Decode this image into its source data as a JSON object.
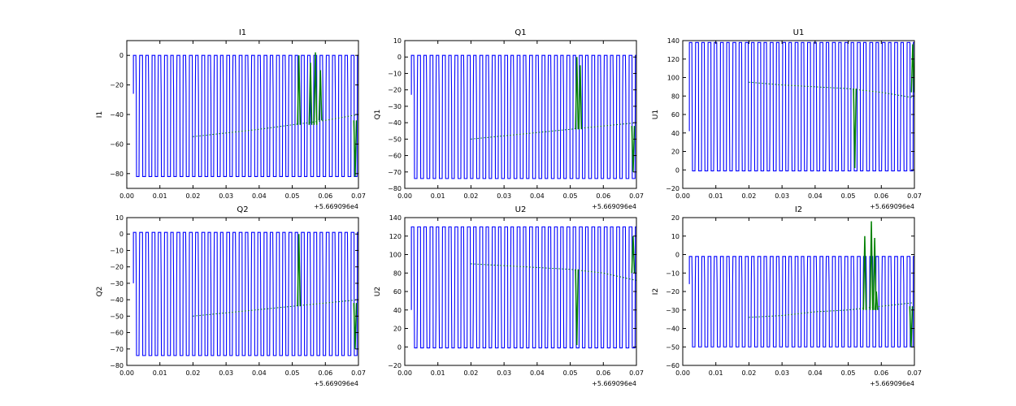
{
  "chart_data": [
    {
      "type": "line",
      "title": "I1",
      "xlabel": "",
      "ylabel": "I1",
      "xlim": [
        0,
        0.07
      ],
      "ylim": [
        -90,
        10
      ],
      "xticks": [
        "0.00",
        "0.01",
        "0.02",
        "0.03",
        "0.04",
        "0.05",
        "0.06",
        "0.07"
      ],
      "yticks": [
        {
          "v": 0,
          "label": "0"
        },
        {
          "v": -20,
          "label": "−20"
        },
        {
          "v": -40,
          "label": "−40"
        },
        {
          "v": -60,
          "label": "−60"
        },
        {
          "v": -80,
          "label": "−80"
        }
      ],
      "x_offset": "+5.669096e4",
      "series": [
        {
          "color": "#0000ff",
          "style": "square",
          "x_start": 0.002,
          "x_end": 0.07,
          "period": 0.00188,
          "high": 0,
          "low": -82,
          "mid": -26
        },
        {
          "color": "#008000",
          "style": "trend",
          "x": [
            0.02,
            0.04,
            0.05,
            0.06,
            0.07
          ],
          "y": [
            -55,
            -50,
            -47,
            -44,
            -40
          ],
          "spikes": [
            {
              "x": 0.052,
              "y": 0
            },
            {
              "x": 0.0555,
              "y": -5
            },
            {
              "x": 0.057,
              "y": 2
            },
            {
              "x": 0.0585,
              "y": -10
            },
            {
              "x": 0.069,
              "y": -82
            }
          ]
        }
      ]
    },
    {
      "type": "line",
      "title": "Q1",
      "xlabel": "",
      "ylabel": "Q1",
      "xlim": [
        0,
        0.07
      ],
      "ylim": [
        -80,
        10
      ],
      "xticks": [
        "0.00",
        "0.01",
        "0.02",
        "0.03",
        "0.04",
        "0.05",
        "0.06",
        "0.07"
      ],
      "yticks": [
        {
          "v": 10,
          "label": "10"
        },
        {
          "v": 0,
          "label": "0"
        },
        {
          "v": -10,
          "label": "−10"
        },
        {
          "v": -20,
          "label": "−20"
        },
        {
          "v": -30,
          "label": "−30"
        },
        {
          "v": -40,
          "label": "−40"
        },
        {
          "v": -50,
          "label": "−50"
        },
        {
          "v": -60,
          "label": "−60"
        },
        {
          "v": -70,
          "label": "−70"
        },
        {
          "v": -80,
          "label": "−80"
        }
      ],
      "x_offset": "+5.669096e4",
      "series": [
        {
          "color": "#0000ff",
          "style": "square",
          "x_start": 0.002,
          "x_end": 0.07,
          "period": 0.00188,
          "high": 1,
          "low": -74,
          "mid": -23
        },
        {
          "color": "#008000",
          "style": "trend",
          "x": [
            0.02,
            0.04,
            0.05,
            0.06,
            0.07
          ],
          "y": [
            -50,
            -46,
            -44,
            -42,
            -40
          ],
          "spikes": [
            {
              "x": 0.052,
              "y": 0
            },
            {
              "x": 0.053,
              "y": -5
            },
            {
              "x": 0.069,
              "y": -70
            }
          ]
        }
      ]
    },
    {
      "type": "line",
      "title": "U1",
      "xlabel": "",
      "ylabel": "U1",
      "xlim": [
        0,
        0.07
      ],
      "ylim": [
        -20,
        140
      ],
      "xticks": [
        "0.00",
        "0.01",
        "0.02",
        "0.03",
        "0.04",
        "0.05",
        "0.06",
        "0.07"
      ],
      "yticks": [
        {
          "v": 140,
          "label": "140"
        },
        {
          "v": 120,
          "label": "120"
        },
        {
          "v": 100,
          "label": "100"
        },
        {
          "v": 80,
          "label": "80"
        },
        {
          "v": 60,
          "label": "60"
        },
        {
          "v": 40,
          "label": "40"
        },
        {
          "v": 20,
          "label": "20"
        },
        {
          "v": 0,
          "label": "0"
        },
        {
          "v": -20,
          "label": "−20"
        }
      ],
      "x_offset": "+5.669096e4",
      "series": [
        {
          "color": "#0000ff",
          "style": "square",
          "x_start": 0.002,
          "x_end": 0.07,
          "period": 0.00188,
          "high": 138,
          "low": -1,
          "mid": 42
        },
        {
          "color": "#008000",
          "style": "trend",
          "x": [
            0.02,
            0.03,
            0.04,
            0.05,
            0.06,
            0.07
          ],
          "y": [
            95,
            92,
            90,
            88,
            84,
            78
          ],
          "spikes": [
            {
              "x": 0.052,
              "y": 2
            },
            {
              "x": 0.0695,
              "y": 136
            }
          ]
        }
      ]
    },
    {
      "type": "line",
      "title": "Q2",
      "xlabel": "",
      "ylabel": "Q2",
      "xlim": [
        0,
        0.07
      ],
      "ylim": [
        -80,
        10
      ],
      "xticks": [
        "0.00",
        "0.01",
        "0.02",
        "0.03",
        "0.04",
        "0.05",
        "0.06",
        "0.07"
      ],
      "yticks": [
        {
          "v": 10,
          "label": "10"
        },
        {
          "v": 0,
          "label": "0"
        },
        {
          "v": -10,
          "label": "−10"
        },
        {
          "v": -20,
          "label": "−20"
        },
        {
          "v": -30,
          "label": "−30"
        },
        {
          "v": -40,
          "label": "−40"
        },
        {
          "v": -50,
          "label": "−50"
        },
        {
          "v": -60,
          "label": "−60"
        },
        {
          "v": -70,
          "label": "−70"
        },
        {
          "v": -80,
          "label": "−80"
        }
      ],
      "x_offset": "+5.669096e4",
      "series": [
        {
          "color": "#0000ff",
          "style": "square",
          "x_start": 0.002,
          "x_end": 0.07,
          "period": 0.00188,
          "high": 1,
          "low": -74,
          "mid": -30
        },
        {
          "color": "#008000",
          "style": "trend",
          "x": [
            0.02,
            0.04,
            0.05,
            0.06,
            0.07
          ],
          "y": [
            -50,
            -46,
            -44,
            -42,
            -40
          ],
          "spikes": [
            {
              "x": 0.052,
              "y": 0
            },
            {
              "x": 0.069,
              "y": -70
            }
          ]
        }
      ]
    },
    {
      "type": "line",
      "title": "U2",
      "xlabel": "",
      "ylabel": "U2",
      "xlim": [
        0,
        0.07
      ],
      "ylim": [
        -20,
        140
      ],
      "xticks": [
        "0.00",
        "0.01",
        "0.02",
        "0.03",
        "0.04",
        "0.05",
        "0.06",
        "0.07"
      ],
      "yticks": [
        {
          "v": 140,
          "label": "140"
        },
        {
          "v": 120,
          "label": "120"
        },
        {
          "v": 100,
          "label": "100"
        },
        {
          "v": 80,
          "label": "80"
        },
        {
          "v": 60,
          "label": "60"
        },
        {
          "v": 40,
          "label": "40"
        },
        {
          "v": 20,
          "label": "20"
        },
        {
          "v": 0,
          "label": "0"
        },
        {
          "v": -20,
          "label": "−20"
        }
      ],
      "x_offset": "+5.669096e4",
      "series": [
        {
          "color": "#0000ff",
          "style": "square",
          "x_start": 0.002,
          "x_end": 0.07,
          "period": 0.00188,
          "high": 130,
          "low": -1,
          "mid": 40
        },
        {
          "color": "#008000",
          "style": "trend",
          "x": [
            0.02,
            0.03,
            0.04,
            0.05,
            0.06,
            0.07
          ],
          "y": [
            90,
            88,
            86,
            84,
            80,
            72
          ],
          "spikes": [
            {
              "x": 0.052,
              "y": 2
            },
            {
              "x": 0.069,
              "y": 120
            }
          ]
        }
      ]
    },
    {
      "type": "line",
      "title": "I2",
      "xlabel": "",
      "ylabel": "I2",
      "xlim": [
        0,
        0.07
      ],
      "ylim": [
        -60,
        20
      ],
      "xticks": [
        "0.00",
        "0.01",
        "0.02",
        "0.03",
        "0.04",
        "0.05",
        "0.06",
        "0.07"
      ],
      "yticks": [
        {
          "v": 20,
          "label": "20"
        },
        {
          "v": 10,
          "label": "10"
        },
        {
          "v": 0,
          "label": "0"
        },
        {
          "v": -10,
          "label": "−10"
        },
        {
          "v": -20,
          "label": "−20"
        },
        {
          "v": -30,
          "label": "−30"
        },
        {
          "v": -40,
          "label": "−40"
        },
        {
          "v": -50,
          "label": "−50"
        },
        {
          "v": -60,
          "label": "−60"
        }
      ],
      "x_offset": "+5.669096e4",
      "series": [
        {
          "color": "#0000ff",
          "style": "square",
          "x_start": 0.002,
          "x_end": 0.07,
          "period": 0.00188,
          "high": -1,
          "low": -50,
          "mid": -16
        },
        {
          "color": "#008000",
          "style": "trend",
          "x": [
            0.02,
            0.03,
            0.04,
            0.05,
            0.06,
            0.07
          ],
          "y": [
            -34,
            -33,
            -31,
            -30,
            -28,
            -26
          ],
          "spikes": [
            {
              "x": 0.055,
              "y": 10
            },
            {
              "x": 0.057,
              "y": 18
            },
            {
              "x": 0.058,
              "y": 9
            },
            {
              "x": 0.0585,
              "y": -20
            },
            {
              "x": 0.069,
              "y": -50
            }
          ]
        }
      ]
    }
  ]
}
